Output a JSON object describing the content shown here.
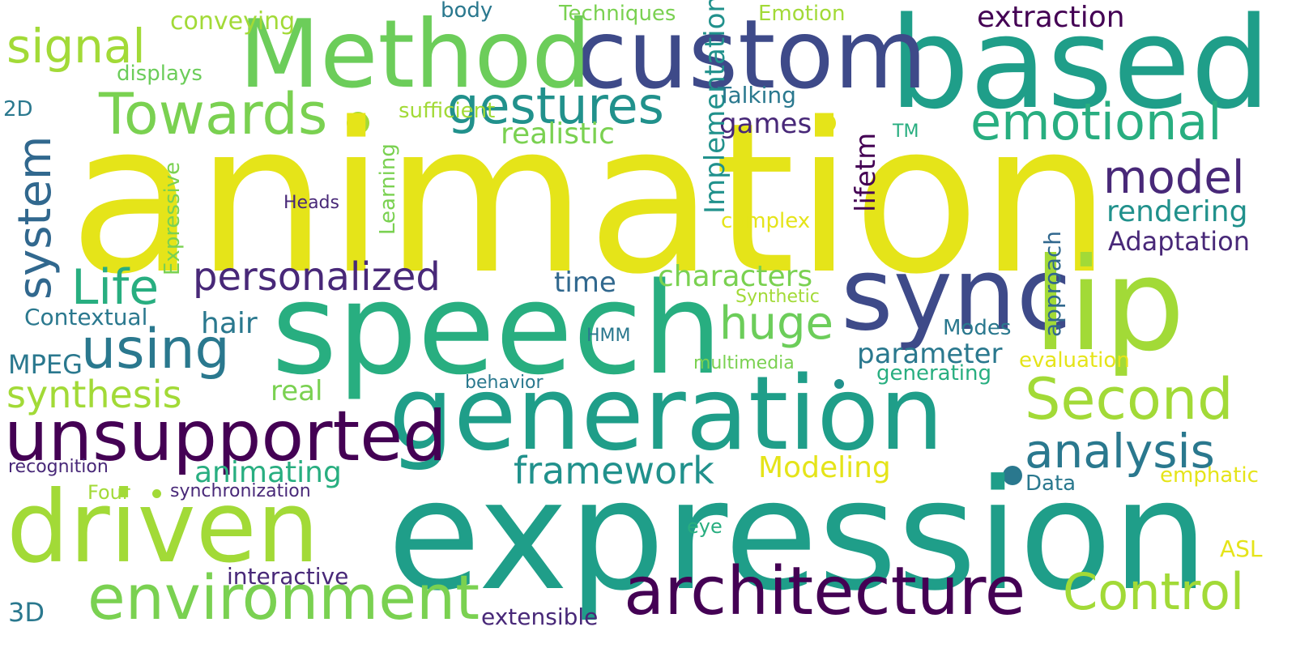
{
  "palette": {
    "yellow": "#e5e419",
    "lime": "#a2da37",
    "green": "#6ccd5a",
    "lightgreen": "#7ad151",
    "teal": "#21918c",
    "seagreen": "#28ae80",
    "mediumteal": "#1f9e89",
    "tealblue": "#2a788e",
    "steelblue": "#31688e",
    "indigo": "#3e4a89",
    "purple": "#482878",
    "deep": "#440154"
  },
  "words": [
    {
      "text": "animation"
    },
    {
      "text": "expression"
    },
    {
      "text": "speech"
    },
    {
      "text": "generation"
    },
    {
      "text": "based"
    },
    {
      "text": "custom"
    },
    {
      "text": "Method"
    },
    {
      "text": "sync"
    },
    {
      "text": "lip"
    },
    {
      "text": "driven"
    },
    {
      "text": "unsupported"
    },
    {
      "text": "environment"
    },
    {
      "text": "architecture"
    },
    {
      "text": "Towards"
    },
    {
      "text": "system"
    },
    {
      "text": "using"
    },
    {
      "text": "Life"
    },
    {
      "text": "gestures"
    },
    {
      "text": "emotional"
    },
    {
      "text": "Second"
    },
    {
      "text": "analysis"
    },
    {
      "text": "Control"
    },
    {
      "text": "model"
    },
    {
      "text": "personalized"
    },
    {
      "text": "signal"
    },
    {
      "text": "huge"
    },
    {
      "text": "synthesis"
    },
    {
      "text": "framework"
    },
    {
      "text": "extraction"
    },
    {
      "text": "realistic"
    },
    {
      "text": "characters"
    },
    {
      "text": "rendering"
    },
    {
      "text": "Adaptation"
    },
    {
      "text": "animating"
    },
    {
      "text": "parameter"
    },
    {
      "text": "Modeling"
    },
    {
      "text": "games"
    },
    {
      "text": "time"
    },
    {
      "text": "hair"
    },
    {
      "text": "real"
    },
    {
      "text": "lifetm"
    },
    {
      "text": "Expressive"
    },
    {
      "text": "Learning"
    },
    {
      "text": "approach"
    },
    {
      "text": "Implementation"
    },
    {
      "text": "Techniques"
    },
    {
      "text": "Emotion"
    },
    {
      "text": "body"
    },
    {
      "text": "conveying"
    },
    {
      "text": "displays"
    },
    {
      "text": "2D"
    },
    {
      "text": "sufficient"
    },
    {
      "text": "Talking"
    },
    {
      "text": "TM"
    },
    {
      "text": "complex"
    },
    {
      "text": "Heads"
    },
    {
      "text": "Contextual"
    },
    {
      "text": "Synthetic"
    },
    {
      "text": "MPEG"
    },
    {
      "text": "HMM"
    },
    {
      "text": "Modes"
    },
    {
      "text": "evaluation"
    },
    {
      "text": "multimedia"
    },
    {
      "text": "generating"
    },
    {
      "text": "behavior"
    },
    {
      "text": "recognition"
    },
    {
      "text": "Four"
    },
    {
      "text": "synchronization"
    },
    {
      "text": "Data"
    },
    {
      "text": "emphatic"
    },
    {
      "text": "eye"
    },
    {
      "text": "interactive"
    },
    {
      "text": "ASL"
    },
    {
      "text": "3D"
    },
    {
      "text": "extensible"
    }
  ]
}
